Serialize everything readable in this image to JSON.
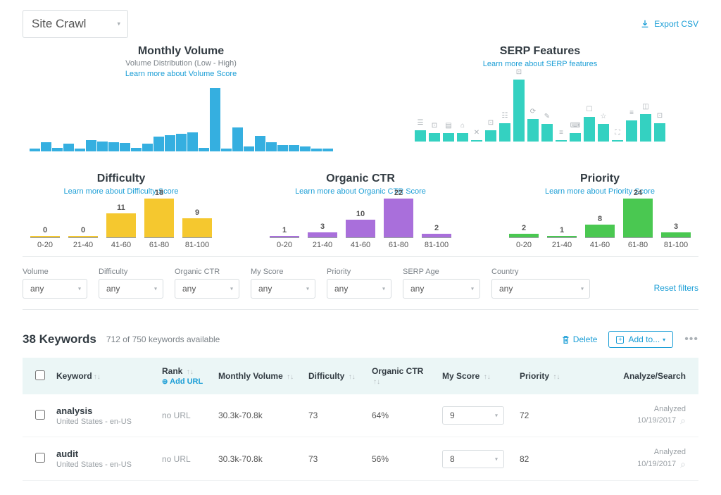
{
  "colors": {
    "blue": "#35afe0",
    "teal": "#34d1c1",
    "yellow": "#f5c82f",
    "purple": "#a96fdb",
    "green": "#4ac851",
    "link": "#1b9ed6"
  },
  "top_select": {
    "label": "Site Crawl"
  },
  "export": {
    "label": "Export CSV"
  },
  "volume_chart": {
    "title": "Monthly Volume",
    "subtitle": "Volume Distribution (Low - High)",
    "learn": "Learn more about Volume Score",
    "color": "#35afe0",
    "max": 100,
    "bars": [
      5,
      14,
      6,
      12,
      4,
      18,
      16,
      14,
      13,
      6,
      12,
      23,
      26,
      28,
      30,
      6,
      100,
      4,
      38,
      8,
      24,
      14,
      10,
      10,
      8,
      4,
      4
    ]
  },
  "serp_chart": {
    "title": "SERP Features",
    "learn": "Learn more about SERP features",
    "color": "#34d1c1",
    "max": 100,
    "bars": [
      {
        "v": 18,
        "i": "☰"
      },
      {
        "v": 14,
        "i": "⊡"
      },
      {
        "v": 14,
        "i": "▤"
      },
      {
        "v": 14,
        "i": "⌂"
      },
      {
        "v": 0,
        "i": "✕"
      },
      {
        "v": 18,
        "i": "⊡"
      },
      {
        "v": 30,
        "i": "☷"
      },
      {
        "v": 100,
        "i": "⊡"
      },
      {
        "v": 36,
        "i": "⟳"
      },
      {
        "v": 28,
        "i": "✎"
      },
      {
        "v": 0,
        "i": "≡"
      },
      {
        "v": 14,
        "i": "⌨"
      },
      {
        "v": 40,
        "i": "☐"
      },
      {
        "v": 28,
        "i": "☆"
      },
      {
        "v": 0,
        "i": "⛶"
      },
      {
        "v": 34,
        "i": "≡"
      },
      {
        "v": 44,
        "i": "◫"
      },
      {
        "v": 30,
        "i": "⊡"
      }
    ]
  },
  "difficulty_chart": {
    "title": "Difficulty",
    "learn": "Learn more about Difficulty Score",
    "color": "#f5c82f",
    "max": 18,
    "categories": [
      "0-20",
      "21-40",
      "41-60",
      "61-80",
      "81-100"
    ],
    "values": [
      0,
      0,
      11,
      18,
      9
    ]
  },
  "ctr_chart": {
    "title": "Organic CTR",
    "learn": "Learn more about Organic CTR Score",
    "color": "#a96fdb",
    "max": 22,
    "categories": [
      "0-20",
      "21-40",
      "41-60",
      "61-80",
      "81-100"
    ],
    "values": [
      1,
      3,
      10,
      22,
      2
    ]
  },
  "priority_chart": {
    "title": "Priority",
    "learn": "Learn more about Priority Score",
    "color": "#4ac851",
    "max": 24,
    "categories": [
      "0-20",
      "21-40",
      "41-60",
      "61-80",
      "81-100"
    ],
    "values": [
      2,
      1,
      8,
      24,
      3
    ]
  },
  "filters": [
    {
      "label": "Volume",
      "value": "any",
      "w": "92"
    },
    {
      "label": "Difficulty",
      "value": "any",
      "w": "92"
    },
    {
      "label": "Organic CTR",
      "value": "any",
      "w": "92"
    },
    {
      "label": "My Score",
      "value": "any",
      "w": "92"
    },
    {
      "label": "Priority",
      "value": "any",
      "w": "92"
    },
    {
      "label": "SERP Age",
      "value": "any",
      "w": "110"
    },
    {
      "label": "Country",
      "value": "any",
      "w": "140"
    }
  ],
  "reset_label": "Reset filters",
  "keywords_header": {
    "count": "38 Keywords",
    "avail": "712 of 750 keywords available",
    "delete": "Delete",
    "addto": "Add to..."
  },
  "table": {
    "headers": {
      "keyword": "Keyword",
      "rank": "Rank",
      "addurl": "Add URL",
      "mv": "Monthly Volume",
      "diff": "Difficulty",
      "ctr": "Organic CTR",
      "score": "My Score",
      "priority": "Priority",
      "analyze": "Analyze/Search"
    },
    "rows": [
      {
        "kw": "analysis",
        "loc": "United States - en-US",
        "rank": "no URL",
        "mv": "30.3k-70.8k",
        "diff": "73",
        "ctr": "64%",
        "score": "9",
        "priority": "72",
        "analyzed": "Analyzed",
        "date": "10/19/2017"
      },
      {
        "kw": "audit",
        "loc": "United States - en-US",
        "rank": "no URL",
        "mv": "30.3k-70.8k",
        "diff": "73",
        "ctr": "56%",
        "score": "8",
        "priority": "82",
        "analyzed": "Analyzed",
        "date": "10/19/2017"
      }
    ]
  }
}
